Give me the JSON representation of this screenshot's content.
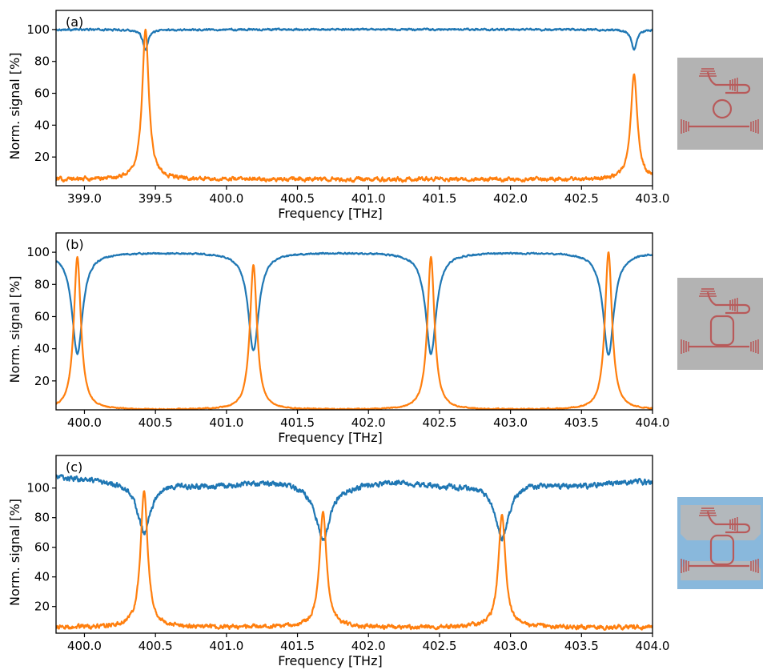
{
  "chart_data": [
    {
      "type": "line",
      "panel_label": "(a)",
      "xlabel": "Frequency [THz]",
      "ylabel": "Norm. signal [%]",
      "xlim": [
        398.8,
        403.0
      ],
      "ylim": [
        2,
        112
      ],
      "xticks": [
        399.0,
        399.5,
        400.0,
        400.5,
        401.0,
        401.5,
        402.0,
        402.5,
        403.0
      ],
      "xtick_labels": [
        "399.0",
        "399.5",
        "400.0",
        "400.5",
        "401.0",
        "401.5",
        "402.0",
        "402.5",
        "403.0"
      ],
      "yticks": [
        20,
        40,
        60,
        80,
        100
      ],
      "ytick_labels": [
        "20",
        "40",
        "60",
        "80",
        "100"
      ],
      "grid": false,
      "resonances": [
        {
          "x": 399.43,
          "transmission_min": 87,
          "drop_peak": 100
        },
        {
          "x": 402.87,
          "transmission_min": 87,
          "drop_peak": 72
        }
      ],
      "series": [
        {
          "color": "#1f77b4",
          "baseline": 100,
          "noise": 1.0,
          "dip_width": 0.022
        },
        {
          "color": "#ff7f0e",
          "baseline": 6,
          "noise": 2.2,
          "peak_width": 0.028
        }
      ],
      "inset": {
        "background": "#b3b3b3",
        "ring": "circle"
      }
    },
    {
      "type": "line",
      "panel_label": "(b)",
      "xlabel": "Frequency [THz]",
      "ylabel": "Norm. signal [%]",
      "xlim": [
        399.8,
        404.0
      ],
      "ylim": [
        2,
        112
      ],
      "xticks": [
        400.0,
        400.5,
        401.0,
        401.5,
        402.0,
        402.5,
        403.0,
        403.5,
        404.0
      ],
      "xtick_labels": [
        "400.0",
        "400.5",
        "401.0",
        "401.5",
        "402.0",
        "402.5",
        "403.0",
        "403.5",
        "404.0"
      ],
      "yticks": [
        20,
        40,
        60,
        80,
        100
      ],
      "ytick_labels": [
        "20",
        "40",
        "60",
        "80",
        "100"
      ],
      "grid": false,
      "resonances": [
        {
          "x": 399.95,
          "transmission_min": 37,
          "drop_peak": 97
        },
        {
          "x": 401.19,
          "transmission_min": 39,
          "drop_peak": 92
        },
        {
          "x": 402.44,
          "transmission_min": 37,
          "drop_peak": 97
        },
        {
          "x": 403.69,
          "transmission_min": 36,
          "drop_peak": 100
        }
      ],
      "series": [
        {
          "color": "#1f77b4",
          "baseline": 100,
          "noise": 0.8,
          "dip_width": 0.045
        },
        {
          "color": "#ff7f0e",
          "baseline": 2,
          "noise": 0.6,
          "peak_width": 0.03
        }
      ],
      "inset": {
        "background": "#b3b3b3",
        "ring": "racetrack"
      }
    },
    {
      "type": "line",
      "panel_label": "(c)",
      "xlabel": "Frequency [THz]",
      "ylabel": "Norm. signal [%]",
      "xlim": [
        399.8,
        404.0
      ],
      "ylim": [
        2,
        122
      ],
      "xticks": [
        400.0,
        400.5,
        401.0,
        401.5,
        402.0,
        402.5,
        403.0,
        403.5,
        404.0
      ],
      "xtick_labels": [
        "400.0",
        "400.5",
        "401.0",
        "401.5",
        "402.0",
        "402.5",
        "403.0",
        "403.5",
        "404.0"
      ],
      "yticks": [
        20,
        40,
        60,
        80,
        100
      ],
      "ytick_labels": [
        "20",
        "40",
        "60",
        "80",
        "100"
      ],
      "grid": false,
      "resonances": [
        {
          "x": 400.42,
          "transmission_min": 69,
          "drop_peak": 98
        },
        {
          "x": 401.68,
          "transmission_min": 67,
          "drop_peak": 84
        },
        {
          "x": 402.94,
          "transmission_min": 65,
          "drop_peak": 82
        }
      ],
      "series": [
        {
          "color": "#1f77b4",
          "baseline": 103,
          "noise": 3.0,
          "dip_width": 0.06
        },
        {
          "color": "#ff7f0e",
          "baseline": 6,
          "noise": 2.5,
          "peak_width": 0.03
        }
      ],
      "inset": {
        "background": "#89b8dc",
        "ring": "racetrack-clad"
      }
    }
  ]
}
